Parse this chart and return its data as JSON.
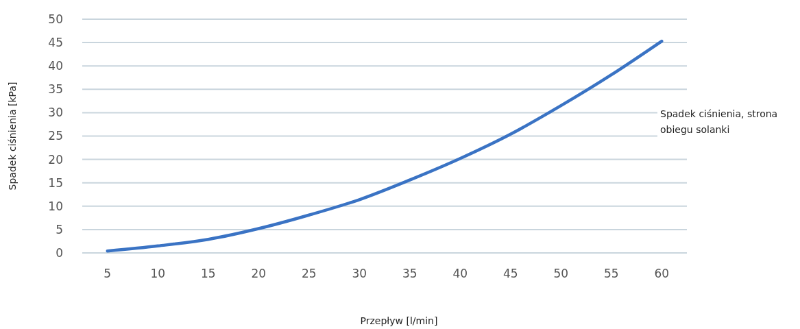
{
  "chart_data": {
    "type": "line",
    "xlabel": "Przepływ [l/min]",
    "ylabel": "Spadek ciśnienia [kPa]",
    "categories": [
      "5",
      "10",
      "15",
      "20",
      "25",
      "30",
      "35",
      "40",
      "45",
      "50",
      "55",
      "60"
    ],
    "series": [
      {
        "name": "Spadek ciśnienia, strona obiegu solanki",
        "color": "#3a73c4",
        "values": [
          0.4,
          1.5,
          2.9,
          5.2,
          8.1,
          11.4,
          15.6,
          20.2,
          25.4,
          31.5,
          38.1,
          45.3
        ]
      }
    ],
    "ylim": [
      0,
      50
    ],
    "yticks": [
      0,
      5,
      10,
      15,
      20,
      25,
      30,
      35,
      40,
      45,
      50
    ],
    "grid": "y",
    "legend": "right",
    "marker": "none",
    "line_style": "solid"
  }
}
